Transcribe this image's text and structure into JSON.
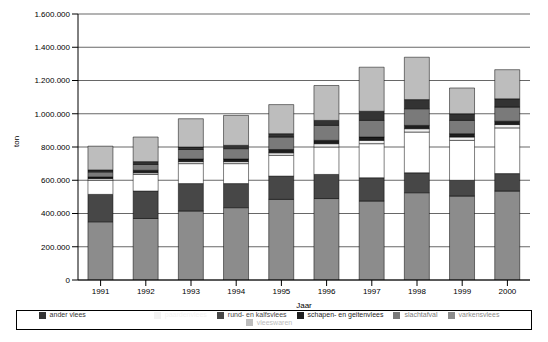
{
  "chart_data": {
    "type": "bar",
    "stacked": true,
    "grid": true,
    "legend": "bottom",
    "x_label": "Jaar",
    "y_label": "ton",
    "categories": [
      "1991",
      "1992",
      "1993",
      "1994",
      "1995",
      "1996",
      "1997",
      "1998",
      "1999",
      "2000"
    ],
    "ylim": [
      0,
      1600000
    ],
    "yticks": [
      0,
      {
        "value": 200000,
        "label": "200.000"
      },
      {
        "value": 400000,
        "label": "400.000"
      },
      {
        "value": 600000,
        "label": "600.000"
      },
      {
        "value": 800000,
        "label": "800.000"
      },
      {
        "value": 1000000,
        "label": "1.000.000"
      },
      {
        "value": 1200000,
        "label": "1.200.000"
      },
      {
        "value": 1400000,
        "label": "1.400.000"
      },
      {
        "value": 1600000,
        "label": "1.600.000"
      }
    ],
    "series": [
      {
        "name": "varkensvlees",
        "color": "#8c8c8c",
        "values": [
          350000,
          370000,
          415000,
          435000,
          485000,
          490000,
          475000,
          525000,
          505000,
          535000
        ]
      },
      {
        "name": "rund- en kalfsvlees",
        "color": "#474747",
        "values": [
          165000,
          165000,
          165000,
          145000,
          140000,
          145000,
          140000,
          120000,
          95000,
          105000
        ]
      },
      {
        "name": "kippenvlees",
        "color": "#ffffff",
        "values": [
          85000,
          100000,
          120000,
          120000,
          125000,
          165000,
          205000,
          245000,
          240000,
          275000
        ]
      },
      {
        "name": "paardenvlees",
        "color": "#f2f2f2",
        "values": [
          10000,
          10000,
          12000,
          12000,
          15000,
          20000,
          20000,
          20000,
          20000,
          20000
        ]
      },
      {
        "name": "schapen- en geitenvlees",
        "color": "#1e1e1e",
        "values": [
          10000,
          15000,
          16000,
          16000,
          20000,
          20000,
          20000,
          20000,
          20000,
          20000
        ]
      },
      {
        "name": "slachtafval",
        "color": "#7a7a7a",
        "values": [
          30000,
          35000,
          57000,
          62000,
          75000,
          90000,
          100000,
          100000,
          80000,
          85000
        ]
      },
      {
        "name": "ander vlees",
        "color": "#333333",
        "values": [
          12000,
          17000,
          15000,
          20000,
          20000,
          30000,
          55000,
          55000,
          40000,
          50000
        ]
      },
      {
        "name": "vleeswaren",
        "color": "#bdbdbd",
        "values": [
          143000,
          148000,
          170000,
          180000,
          175000,
          210000,
          265000,
          255000,
          155000,
          175000
        ]
      }
    ]
  }
}
